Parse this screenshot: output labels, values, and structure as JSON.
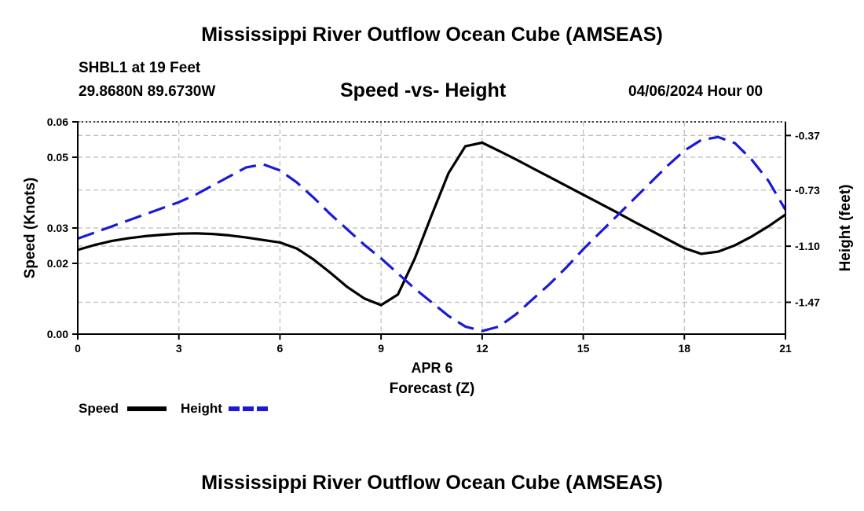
{
  "header": {
    "title": "Mississippi River Outflow Ocean Cube (AMSEAS)",
    "station": "SHBL1 at 19 Feet",
    "coordinates": "29.8680N  89.6730W",
    "datetime": "04/06/2024 Hour 00"
  },
  "footer": {
    "title": "Mississippi River Outflow Ocean Cube (AMSEAS)"
  },
  "colors": {
    "speed": "#000000",
    "height": "#1a1ad6",
    "grid": "#bbbbbb"
  },
  "chart_data": {
    "type": "line",
    "title": "Speed -vs- Height",
    "xlabel": "Forecast (Z)",
    "xsublabel": "APR 6",
    "ylabel": "Speed (Knots)",
    "y2label": "Height (feet)",
    "xlim": [
      0,
      21
    ],
    "ylim": [
      0,
      0.06
    ],
    "y2lim": [
      -1.68,
      -0.28
    ],
    "x_ticks": [
      0,
      3,
      6,
      9,
      12,
      15,
      18,
      21
    ],
    "x_tick_labels": [
      "0",
      "3",
      "6",
      "9",
      "12",
      "15",
      "18",
      "21"
    ],
    "y_ticks": [
      0,
      0.02,
      0.03,
      0.05,
      0.06
    ],
    "y_tick_labels": [
      "0.00",
      "0.02",
      "0.03",
      "0.05",
      "0.06"
    ],
    "y2_ticks": [
      -0.37,
      -0.73,
      -1.1,
      -1.47
    ],
    "y2_tick_labels": [
      "-0.37",
      "-0.73",
      "-1.10",
      "-1.47"
    ],
    "grid": true,
    "legend_placement": "bottom-left",
    "series": [
      {
        "name": "Speed",
        "axis": "left",
        "style": "solid",
        "x": [
          0,
          0.5,
          1,
          1.5,
          2,
          2.5,
          3,
          3.5,
          4,
          4.5,
          5,
          5.5,
          6,
          6.5,
          7,
          7.5,
          8,
          8.5,
          9,
          9.5,
          10,
          10.5,
          11,
          11.5,
          12,
          12.5,
          13,
          13.5,
          14,
          14.5,
          15,
          15.5,
          16,
          16.5,
          17,
          17.5,
          18,
          18.5,
          19,
          19.5,
          20,
          20.5,
          21
        ],
        "y": [
          0.0238,
          0.0252,
          0.0263,
          0.0271,
          0.0277,
          0.0281,
          0.0284,
          0.0285,
          0.0283,
          0.0279,
          0.0273,
          0.0266,
          0.0259,
          0.0242,
          0.0211,
          0.0173,
          0.0133,
          0.0101,
          0.0082,
          0.0112,
          0.0213,
          0.0336,
          0.0455,
          0.0531,
          0.0541,
          0.0518,
          0.0494,
          0.0469,
          0.0444,
          0.0419,
          0.0394,
          0.0369,
          0.0344,
          0.0318,
          0.0293,
          0.0268,
          0.0243,
          0.0227,
          0.0233,
          0.0251,
          0.0276,
          0.0305,
          0.0338
        ]
      },
      {
        "name": "Height",
        "axis": "right",
        "style": "dashed",
        "x": [
          0,
          0.5,
          1,
          1.5,
          2,
          2.5,
          3,
          3.5,
          4,
          4.5,
          5,
          5.5,
          6,
          6.5,
          7,
          7.5,
          8,
          8.5,
          9,
          9.5,
          10,
          10.5,
          11,
          11.5,
          12,
          12.5,
          13,
          13.5,
          14,
          14.5,
          15,
          15.5,
          16,
          16.5,
          17,
          17.5,
          18,
          18.5,
          19,
          19.5,
          20,
          20.5,
          21
        ],
        "y": [
          -1.05,
          -1.01,
          -0.97,
          -0.93,
          -0.89,
          -0.85,
          -0.81,
          -0.76,
          -0.7,
          -0.64,
          -0.58,
          -0.56,
          -0.6,
          -0.68,
          -0.78,
          -0.89,
          -0.99,
          -1.09,
          -1.18,
          -1.28,
          -1.38,
          -1.47,
          -1.56,
          -1.63,
          -1.66,
          -1.63,
          -1.55,
          -1.45,
          -1.35,
          -1.24,
          -1.12,
          -1.01,
          -0.9,
          -0.79,
          -0.68,
          -0.57,
          -0.47,
          -0.4,
          -0.38,
          -0.42,
          -0.53,
          -0.67,
          -0.86
        ]
      }
    ]
  }
}
